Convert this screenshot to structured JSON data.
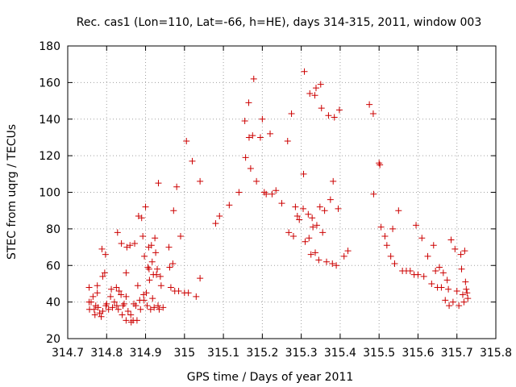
{
  "chart_data": {
    "type": "scatter",
    "title": "Rec. cas1 (Lon=110, Lat=-66, h=HE), days 314-315, 2011, window 003",
    "xlabel": "GPS time / Days of year 2011",
    "ylabel": "STEC from uqrg / TECUs",
    "xlim": [
      314.7,
      315.8
    ],
    "ylim": [
      20,
      180
    ],
    "xticks": [
      "314.7",
      "314.8",
      "314.9",
      "315",
      "315.1",
      "315.2",
      "315.3",
      "315.4",
      "315.5",
      "315.6",
      "315.7",
      "315.8"
    ],
    "yticks": [
      "20",
      "40",
      "60",
      "80",
      "100",
      "120",
      "140",
      "160",
      "180"
    ],
    "grid": true,
    "legend": "none",
    "marker": "plus",
    "color": "#cc0000",
    "points": [
      [
        314.755,
        48
      ],
      [
        314.755,
        40
      ],
      [
        314.756,
        36
      ],
      [
        314.76,
        40
      ],
      [
        314.765,
        43
      ],
      [
        314.768,
        36
      ],
      [
        314.77,
        33
      ],
      [
        314.772,
        38
      ],
      [
        314.776,
        45
      ],
      [
        314.776,
        49
      ],
      [
        314.778,
        37
      ],
      [
        314.782,
        34
      ],
      [
        314.786,
        32
      ],
      [
        314.788,
        69
      ],
      [
        314.79,
        54
      ],
      [
        314.79,
        35
      ],
      [
        314.795,
        56
      ],
      [
        314.797,
        66
      ],
      [
        314.798,
        38
      ],
      [
        314.8,
        39
      ],
      [
        314.805,
        36
      ],
      [
        314.81,
        43
      ],
      [
        314.812,
        47
      ],
      [
        314.815,
        37
      ],
      [
        314.82,
        40
      ],
      [
        314.825,
        48
      ],
      [
        314.826,
        38
      ],
      [
        314.828,
        78
      ],
      [
        314.83,
        36
      ],
      [
        314.832,
        46
      ],
      [
        314.837,
        44
      ],
      [
        314.838,
        72
      ],
      [
        314.84,
        33
      ],
      [
        314.842,
        38
      ],
      [
        314.845,
        39
      ],
      [
        314.85,
        30
      ],
      [
        314.85,
        56
      ],
      [
        314.85,
        43
      ],
      [
        314.852,
        70
      ],
      [
        314.855,
        35
      ],
      [
        314.86,
        71
      ],
      [
        314.862,
        33
      ],
      [
        314.863,
        29
      ],
      [
        314.868,
        30
      ],
      [
        314.87,
        39
      ],
      [
        314.872,
        72
      ],
      [
        314.875,
        38
      ],
      [
        314.878,
        30
      ],
      [
        314.88,
        49
      ],
      [
        314.882,
        87
      ],
      [
        314.885,
        41
      ],
      [
        314.887,
        36
      ],
      [
        314.89,
        86
      ],
      [
        314.893,
        76
      ],
      [
        314.895,
        44
      ],
      [
        314.896,
        41
      ],
      [
        314.897,
        65
      ],
      [
        314.9,
        92
      ],
      [
        314.902,
        45
      ],
      [
        314.904,
        38
      ],
      [
        314.906,
        59
      ],
      [
        314.908,
        70
      ],
      [
        314.909,
        58
      ],
      [
        314.91,
        52
      ],
      [
        314.913,
        36
      ],
      [
        314.915,
        71
      ],
      [
        314.917,
        62
      ],
      [
        314.918,
        42
      ],
      [
        314.92,
        55
      ],
      [
        314.922,
        37
      ],
      [
        314.924,
        75
      ],
      [
        314.926,
        67
      ],
      [
        314.928,
        55
      ],
      [
        314.93,
        58
      ],
      [
        314.932,
        38
      ],
      [
        314.933,
        105
      ],
      [
        314.935,
        36
      ],
      [
        314.938,
        54
      ],
      [
        314.94,
        49
      ],
      [
        314.945,
        37
      ],
      [
        314.96,
        70
      ],
      [
        314.962,
        59
      ],
      [
        314.965,
        48
      ],
      [
        314.97,
        61
      ],
      [
        314.972,
        90
      ],
      [
        314.975,
        46
      ],
      [
        314.98,
        103
      ],
      [
        314.985,
        46
      ],
      [
        314.99,
        76
      ],
      [
        315.0,
        45
      ],
      [
        315.005,
        128
      ],
      [
        315.01,
        45
      ],
      [
        315.02,
        117
      ],
      [
        315.03,
        43
      ],
      [
        315.04,
        53
      ],
      [
        315.04,
        106
      ],
      [
        315.08,
        83
      ],
      [
        315.09,
        87
      ],
      [
        315.115,
        93
      ],
      [
        315.14,
        100
      ],
      [
        315.155,
        139
      ],
      [
        315.157,
        119
      ],
      [
        315.165,
        149
      ],
      [
        315.166,
        130
      ],
      [
        315.17,
        113
      ],
      [
        315.175,
        131
      ],
      [
        315.178,
        162
      ],
      [
        315.185,
        106
      ],
      [
        315.195,
        130
      ],
      [
        315.2,
        140
      ],
      [
        315.205,
        100
      ],
      [
        315.21,
        99
      ],
      [
        315.22,
        132
      ],
      [
        315.225,
        99
      ],
      [
        315.235,
        101
      ],
      [
        315.25,
        94
      ],
      [
        315.265,
        128
      ],
      [
        315.268,
        78
      ],
      [
        315.275,
        143
      ],
      [
        315.28,
        76
      ],
      [
        315.285,
        92
      ],
      [
        315.29,
        87
      ],
      [
        315.295,
        85
      ],
      [
        315.305,
        91
      ],
      [
        315.306,
        110
      ],
      [
        315.308,
        166
      ],
      [
        315.31,
        73
      ],
      [
        315.318,
        88
      ],
      [
        315.32,
        75
      ],
      [
        315.322,
        154
      ],
      [
        315.325,
        66
      ],
      [
        315.328,
        86
      ],
      [
        315.33,
        81
      ],
      [
        315.335,
        153
      ],
      [
        315.336,
        67
      ],
      [
        315.338,
        157
      ],
      [
        315.34,
        82
      ],
      [
        315.345,
        63
      ],
      [
        315.348,
        92
      ],
      [
        315.35,
        159
      ],
      [
        315.352,
        146
      ],
      [
        315.355,
        78
      ],
      [
        315.36,
        90
      ],
      [
        315.365,
        62
      ],
      [
        315.37,
        142
      ],
      [
        315.375,
        96
      ],
      [
        315.38,
        61
      ],
      [
        315.382,
        106
      ],
      [
        315.385,
        141
      ],
      [
        315.39,
        60
      ],
      [
        315.395,
        91
      ],
      [
        315.398,
        145
      ],
      [
        315.41,
        65
      ],
      [
        315.42,
        68
      ],
      [
        315.475,
        148
      ],
      [
        315.485,
        143
      ],
      [
        315.486,
        99
      ],
      [
        315.5,
        116
      ],
      [
        315.502,
        115
      ],
      [
        315.505,
        81
      ],
      [
        315.515,
        76
      ],
      [
        315.52,
        71
      ],
      [
        315.53,
        65
      ],
      [
        315.535,
        80
      ],
      [
        315.54,
        61
      ],
      [
        315.55,
        90
      ],
      [
        315.56,
        57
      ],
      [
        315.57,
        57
      ],
      [
        315.58,
        57
      ],
      [
        315.59,
        55
      ],
      [
        315.595,
        82
      ],
      [
        315.6,
        55
      ],
      [
        315.61,
        75
      ],
      [
        315.615,
        54
      ],
      [
        315.625,
        65
      ],
      [
        315.635,
        50
      ],
      [
        315.64,
        71
      ],
      [
        315.645,
        57
      ],
      [
        315.65,
        48
      ],
      [
        315.655,
        59
      ],
      [
        315.66,
        48
      ],
      [
        315.665,
        56
      ],
      [
        315.67,
        41
      ],
      [
        315.675,
        52
      ],
      [
        315.678,
        47
      ],
      [
        315.68,
        38
      ],
      [
        315.685,
        74
      ],
      [
        315.69,
        40
      ],
      [
        315.695,
        69
      ],
      [
        315.7,
        46
      ],
      [
        315.705,
        38
      ],
      [
        315.71,
        66
      ],
      [
        315.712,
        58
      ],
      [
        315.715,
        44
      ],
      [
        315.718,
        40
      ],
      [
        315.72,
        68
      ],
      [
        315.722,
        51
      ],
      [
        315.724,
        47
      ],
      [
        315.726,
        45
      ],
      [
        315.728,
        42
      ]
    ]
  }
}
